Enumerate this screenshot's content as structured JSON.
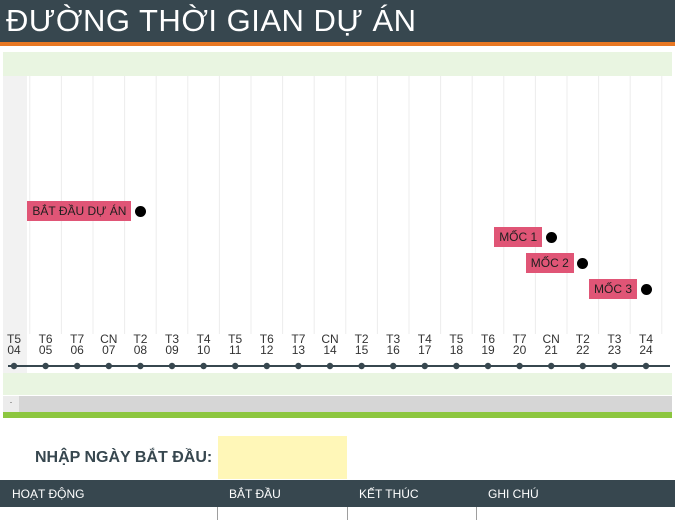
{
  "title": "ĐƯỜNG THỜI GIAN DỰ ÁN",
  "timeline": {
    "days": [
      {
        "weekday": "T5",
        "date": "04"
      },
      {
        "weekday": "T6",
        "date": "05"
      },
      {
        "weekday": "T7",
        "date": "06"
      },
      {
        "weekday": "CN",
        "date": "07"
      },
      {
        "weekday": "T2",
        "date": "08"
      },
      {
        "weekday": "T3",
        "date": "09"
      },
      {
        "weekday": "T4",
        "date": "10"
      },
      {
        "weekday": "T5",
        "date": "11"
      },
      {
        "weekday": "T6",
        "date": "12"
      },
      {
        "weekday": "T7",
        "date": "13"
      },
      {
        "weekday": "CN",
        "date": "14"
      },
      {
        "weekday": "T2",
        "date": "15"
      },
      {
        "weekday": "T3",
        "date": "16"
      },
      {
        "weekday": "T4",
        "date": "17"
      },
      {
        "weekday": "T5",
        "date": "18"
      },
      {
        "weekday": "T6",
        "date": "19"
      },
      {
        "weekday": "T7",
        "date": "20"
      },
      {
        "weekday": "CN",
        "date": "21"
      },
      {
        "weekday": "T2",
        "date": "22"
      },
      {
        "weekday": "T3",
        "date": "23"
      },
      {
        "weekday": "T4",
        "date": "24"
      }
    ],
    "milestones": [
      {
        "label": "BẮT ĐẦU DỰ ÁN",
        "date": "08"
      },
      {
        "label": "MỐC 1",
        "date": "21"
      },
      {
        "label": "MỐC 2",
        "date": "22"
      },
      {
        "label": "MỐC 3",
        "date": "24"
      }
    ]
  },
  "start_date": {
    "label": "NHẬP NGÀY BẮT ĐẦU:",
    "value": ""
  },
  "table": {
    "headers": [
      "HOẠT ĐỘNG",
      "BẮT ĐẦU",
      "KẾT THÚC",
      "GHI CHÚ"
    ]
  },
  "colors": {
    "header_bg": "#37474f",
    "accent": "#e87722",
    "milestone": "#e05576",
    "band": "#e9f5e1",
    "input_bg": "#fff7b8",
    "green": "#8cc63f"
  }
}
